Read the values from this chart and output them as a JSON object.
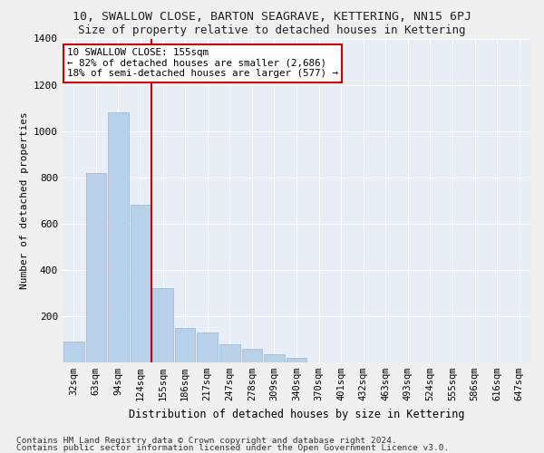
{
  "title": "10, SWALLOW CLOSE, BARTON SEAGRAVE, KETTERING, NN15 6PJ",
  "subtitle": "Size of property relative to detached houses in Kettering",
  "xlabel": "Distribution of detached houses by size in Kettering",
  "ylabel": "Number of detached properties",
  "categories": [
    "32sqm",
    "63sqm",
    "94sqm",
    "124sqm",
    "155sqm",
    "186sqm",
    "217sqm",
    "247sqm",
    "278sqm",
    "309sqm",
    "340sqm",
    "370sqm",
    "401sqm",
    "432sqm",
    "463sqm",
    "493sqm",
    "524sqm",
    "555sqm",
    "586sqm",
    "616sqm",
    "647sqm"
  ],
  "values": [
    90,
    820,
    1080,
    680,
    320,
    150,
    130,
    80,
    60,
    35,
    20,
    0,
    0,
    0,
    0,
    0,
    0,
    0,
    0,
    0,
    0
  ],
  "bar_color": "#b8d0e8",
  "bar_edge_color": "#90b8d8",
  "vline_color": "#cc0000",
  "vline_x_index": 3.5,
  "annotation_text": "10 SWALLOW CLOSE: 155sqm\n← 82% of detached houses are smaller (2,686)\n18% of semi-detached houses are larger (577) →",
  "annotation_box_color": "#ffffff",
  "annotation_box_edge_color": "#cc0000",
  "ylim": [
    0,
    1400
  ],
  "yticks": [
    0,
    200,
    400,
    600,
    800,
    1000,
    1200,
    1400
  ],
  "background_color": "#e8eef5",
  "grid_color": "#d0d8e4",
  "footer_line1": "Contains HM Land Registry data © Crown copyright and database right 2024.",
  "footer_line2": "Contains public sector information licensed under the Open Government Licence v3.0.",
  "title_fontsize": 9.5,
  "subtitle_fontsize": 9,
  "annotation_fontsize": 7.8,
  "axis_fontsize": 7.5,
  "footer_fontsize": 6.8
}
